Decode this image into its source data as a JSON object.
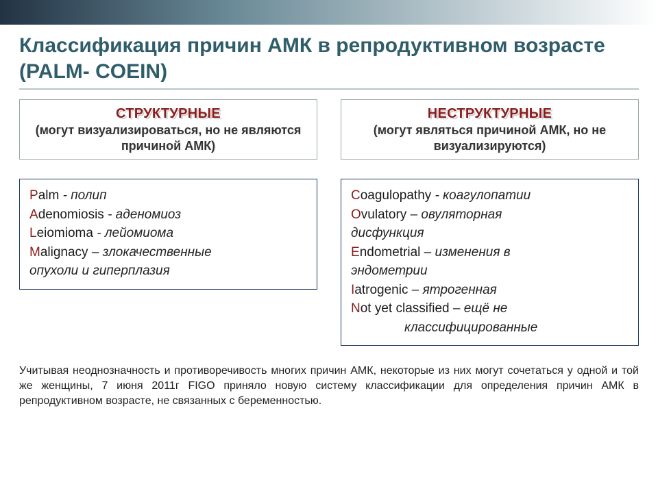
{
  "title": "Классификация причин АМК в репродуктивном возрасте (PALM- COEIN)",
  "left": {
    "cat_title": "СТРУКТУРНЫЕ",
    "cat_sub": "(могут визуализироваться, но не являются причиной АМК)",
    "items": [
      {
        "letter": "P",
        "rest": "alm",
        "desc": " - полип"
      },
      {
        "letter": "A",
        "rest": "denomiosis",
        "desc": " - аденомиоз"
      },
      {
        "letter": "L",
        "rest": "eiomioma",
        "desc": " - лейомиома"
      },
      {
        "letter": "M",
        "rest": "alignacy",
        "desc": " – злокачественные"
      }
    ],
    "cont": "опухоли  и гиперплазия"
  },
  "right": {
    "cat_title": "НЕСТРУКТУРНЫЕ",
    "cat_sub": "(могут являться причиной АМК, но не визуализируются)",
    "items": [
      {
        "letter": "C",
        "rest": "oagulopathy",
        "desc": " - коагулопатии"
      },
      {
        "letter": "O",
        "rest": "vulatory",
        "desc": " – овуляторная"
      },
      {
        "cont": "дисфункция"
      },
      {
        "letter": "E",
        "rest": "ndometrial",
        "desc": " – изменения в"
      },
      {
        "cont": "эндометрии"
      },
      {
        "letter": "I",
        "rest": "atrogenic",
        "desc": " – ятрогенная"
      },
      {
        "letter": "N",
        "rest": "ot yet classified",
        "desc": " – ещё не"
      },
      {
        "cont_indent": "классифицированные"
      }
    ]
  },
  "footnote": "Учитывая неоднозначность и противоречивость многих причин АМК, некоторые из них могут сочетаться у одной и той же женщины, 7 июня 2011г FIGO приняло новую систему классификации для определения причин АМК в репродуктивном возрасте, не связанных с беременностью."
}
